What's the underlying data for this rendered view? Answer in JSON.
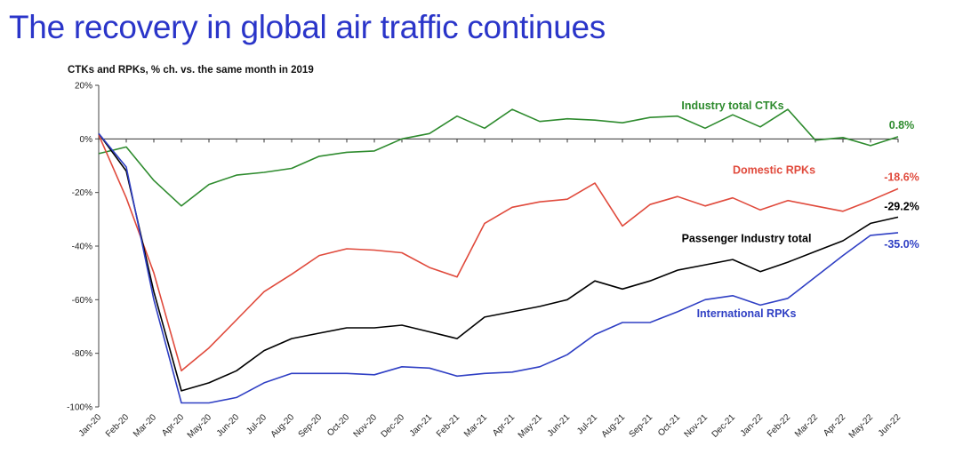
{
  "header": {
    "title": "The recovery in global air traffic continues"
  },
  "chart_data": {
    "type": "line",
    "subtitle": "CTKs and RPKs, % ch. vs. the same month in 2019",
    "ylim": [
      -100,
      20
    ],
    "yticks": [
      20,
      0,
      -20,
      -40,
      -60,
      -80,
      -100
    ],
    "ytick_labels": [
      "20%",
      "0%",
      "-20%",
      "-40%",
      "-60%",
      "-80%",
      "-100%"
    ],
    "categories": [
      "Jan-20",
      "Feb-20",
      "Mar-20",
      "Apr-20",
      "May-20",
      "Jun-20",
      "Jul-20",
      "Aug-20",
      "Sep-20",
      "Oct-20",
      "Nov-20",
      "Dec-20",
      "Jan-21",
      "Feb-21",
      "Mar-21",
      "Apr-21",
      "May-21",
      "Jun-21",
      "Jul-21",
      "Aug-21",
      "Sep-21",
      "Oct-21",
      "Nov-21",
      "Dec-21",
      "Jan-22",
      "Feb-22",
      "Mar-22",
      "Apr-22",
      "May-22",
      "Jun-22"
    ],
    "series": [
      {
        "name": "Industry total CTKs",
        "color": "#2e8b2e",
        "label_anchor": {
          "index": 23,
          "value": 11
        },
        "end_label": "0.8%",
        "values": [
          -5.5,
          -3,
          -15.5,
          -25,
          -17,
          -13.5,
          -12.5,
          -11,
          -6.5,
          -5,
          -4.5,
          0,
          2,
          8.5,
          4,
          11,
          6.5,
          7.5,
          7,
          6,
          8,
          8.5,
          4,
          9,
          4.5,
          11,
          -0.5,
          0.5,
          -2.5,
          0.8
        ]
      },
      {
        "name": "Domestic RPKs",
        "color": "#e04a3c",
        "label_anchor": {
          "index": 24.5,
          "value": -13
        },
        "end_label": "-18.6%",
        "values": [
          1.5,
          -22,
          -50,
          -86.5,
          -78,
          -67.5,
          -57,
          -50.5,
          -43.5,
          -41,
          -41.5,
          -42.5,
          -48,
          -51.5,
          -31.5,
          -25.5,
          -23.5,
          -22.5,
          -16.5,
          -32.5,
          -24.5,
          -21.5,
          -25,
          -22,
          -26.5,
          -23,
          -25,
          -27,
          -23,
          -18.6
        ]
      },
      {
        "name": "Passenger Industry total",
        "color": "#000000",
        "label_anchor": {
          "index": 23.5,
          "value": -38.5
        },
        "end_label": "-29.2%",
        "values": [
          2,
          -12,
          -57,
          -94,
          -91,
          -86.5,
          -79,
          -74.5,
          -72.5,
          -70.5,
          -70.5,
          -69.5,
          -72,
          -74.5,
          -66.5,
          -64.5,
          -62.5,
          -60,
          -53,
          -56,
          -53,
          -49,
          -47,
          -45,
          -49.5,
          -46,
          -42,
          -38,
          -31.5,
          -29.2
        ]
      },
      {
        "name": "International RPKs",
        "color": "#2f3fc4",
        "label_anchor": {
          "index": 23.5,
          "value": -66.5
        },
        "end_label": "-35.0%",
        "values": [
          2,
          -10.5,
          -60,
          -98.5,
          -98.5,
          -96.5,
          -91,
          -87.5,
          -87.5,
          -87.5,
          -88,
          -85,
          -85.5,
          -88.5,
          -87.5,
          -87,
          -85,
          -80.5,
          -73,
          -68.5,
          -68.5,
          -64.5,
          -60,
          -58.5,
          -62,
          -59.5,
          -51.5,
          -43.5,
          -36,
          -35
        ]
      }
    ]
  }
}
